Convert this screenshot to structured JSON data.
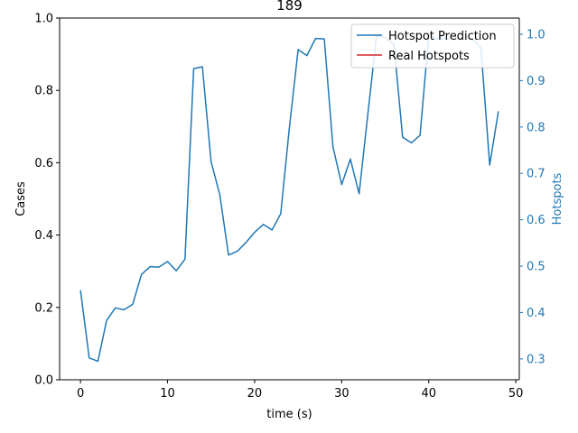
{
  "chart_data": {
    "type": "line",
    "title": "189",
    "xlabel": "time (s)",
    "ylabel": "Cases",
    "ylabel_right": "Hotspots",
    "xlim": [
      -2.4,
      50.4
    ],
    "ylim": [
      0,
      1.0
    ],
    "ylim_right": [
      0.255,
      1.035
    ],
    "x_ticks": [
      0,
      10,
      20,
      30,
      40,
      50
    ],
    "y_ticks": [
      "0.0",
      "0.2",
      "0.4",
      "0.6",
      "0.8",
      "1.0"
    ],
    "y_ticks_right": [
      "0.3",
      "0.4",
      "0.5",
      "0.6",
      "0.7",
      "0.8",
      "0.9",
      "1.0"
    ],
    "grid": false,
    "legend_position": "top-right",
    "colors": {
      "prediction": "#1f77b4",
      "real": "#d62728",
      "right_axis": "#1f77b4"
    },
    "series": [
      {
        "name": "Hotspot Prediction",
        "axis": "right",
        "x": [
          0,
          1,
          2,
          3,
          4,
          5,
          6,
          7,
          8,
          9,
          10,
          11,
          12,
          13,
          14,
          15,
          16,
          17,
          18,
          19,
          20,
          21,
          22,
          23,
          24,
          25,
          26,
          27,
          28,
          29,
          30,
          31,
          32,
          33,
          34,
          35,
          36,
          37,
          38,
          39,
          40,
          41,
          42,
          43,
          44,
          45,
          46,
          47,
          48
        ],
        "values": [
          0.448,
          0.302,
          0.295,
          0.383,
          0.41,
          0.406,
          0.418,
          0.482,
          0.499,
          0.498,
          0.51,
          0.49,
          0.515,
          0.926,
          0.93,
          0.725,
          0.654,
          0.524,
          0.532,
          0.551,
          0.573,
          0.59,
          0.578,
          0.613,
          0.8,
          0.967,
          0.954,
          0.991,
          0.99,
          0.757,
          0.676,
          0.731,
          0.656,
          0.827,
          0.996,
          0.993,
          0.979,
          0.778,
          0.766,
          0.782,
          0.998,
          0.99,
          0.99,
          0.99,
          0.99,
          0.99,
          0.97,
          0.718,
          0.834
        ]
      },
      {
        "name": "Real Hotspots",
        "axis": "right",
        "x": [],
        "values": []
      }
    ]
  }
}
